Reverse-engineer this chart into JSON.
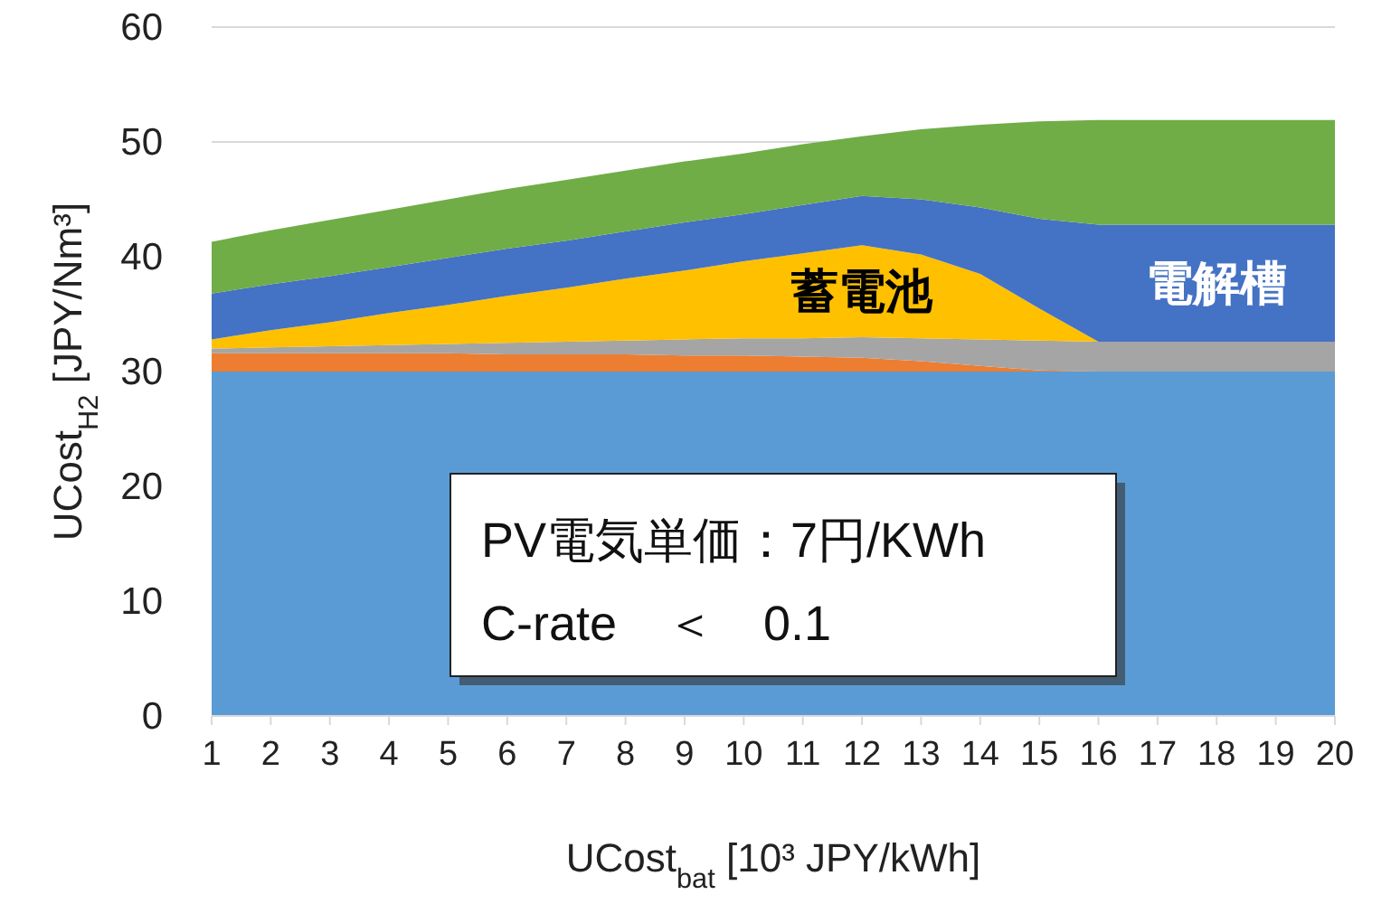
{
  "chart_data": {
    "type": "area",
    "stacked": true,
    "xlabel": "UCost$_{bat}$ [10³ JPY/kWh]",
    "ylabel": "UCost$_{H2}$ [JPY/Nm³]",
    "x": [
      1,
      2,
      3,
      4,
      5,
      6,
      7,
      8,
      9,
      10,
      11,
      12,
      13,
      14,
      15,
      16,
      17,
      18,
      19,
      20
    ],
    "xlim": [
      1,
      20
    ],
    "xticks": [
      1,
      2,
      3,
      4,
      5,
      6,
      7,
      8,
      9,
      10,
      11,
      12,
      13,
      14,
      15,
      16,
      17,
      18,
      19,
      20
    ],
    "ylim": [
      0,
      60
    ],
    "yticks": [
      0,
      10,
      20,
      30,
      40,
      50,
      60
    ],
    "grid": "y",
    "series": [
      {
        "color": "#5b9bd5",
        "values": [
          30,
          30,
          30,
          30,
          30,
          30,
          30,
          30,
          30,
          30,
          30,
          30,
          30,
          30,
          30,
          30,
          30,
          30,
          30,
          30
        ]
      },
      {
        "color": "#ed7d31",
        "values": [
          1.6,
          1.6,
          1.6,
          1.6,
          1.6,
          1.5,
          1.5,
          1.5,
          1.4,
          1.4,
          1.3,
          1.2,
          0.9,
          0.5,
          0.1,
          0,
          0,
          0,
          0,
          0
        ]
      },
      {
        "color": "#a5a5a5",
        "values": [
          0.4,
          0.5,
          0.6,
          0.7,
          0.8,
          1.0,
          1.1,
          1.2,
          1.4,
          1.5,
          1.6,
          1.8,
          2.0,
          2.3,
          2.6,
          2.6,
          2.6,
          2.6,
          2.6,
          2.6
        ]
      },
      {
        "name": "蓄電池",
        "color": "#ffc000",
        "values": [
          0.8,
          1.5,
          2.1,
          2.8,
          3.4,
          4.1,
          4.7,
          5.4,
          6.0,
          6.7,
          7.4,
          8.0,
          7.3,
          5.7,
          2.8,
          0,
          0,
          0,
          0,
          0
        ]
      },
      {
        "name": "電解槽",
        "color": "#4472c4",
        "values": [
          4.0,
          4.0,
          4.0,
          4.0,
          4.1,
          4.1,
          4.1,
          4.1,
          4.2,
          4.1,
          4.2,
          4.3,
          4.8,
          5.8,
          7.8,
          10.2,
          10.2,
          10.2,
          10.2,
          10.2
        ]
      },
      {
        "color": "#70ad47",
        "values": [
          4.5,
          4.7,
          4.9,
          5.0,
          5.1,
          5.2,
          5.3,
          5.3,
          5.3,
          5.3,
          5.3,
          5.2,
          6.1,
          7.2,
          8.5,
          9.1,
          9.1,
          9.1,
          9.1,
          9.1
        ]
      }
    ],
    "annotations": [
      "PV電気単価：7円/KWh",
      "C-rate　＜　0.1"
    ]
  }
}
